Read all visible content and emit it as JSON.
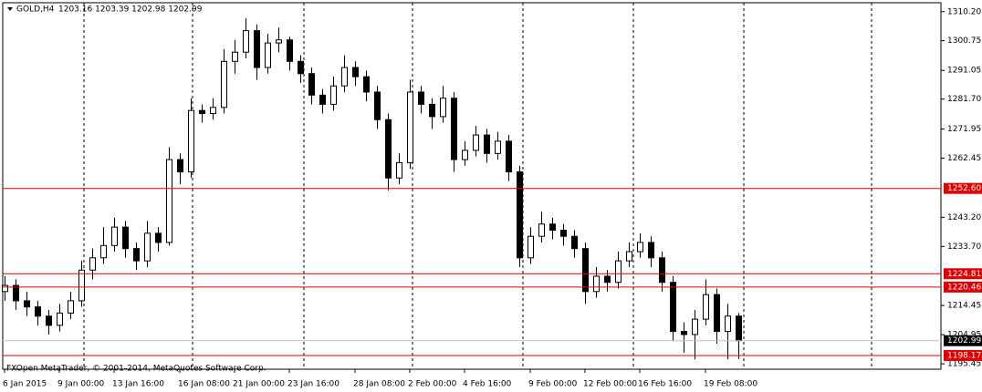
{
  "chart_data": {
    "type": "candlestick",
    "symbol": "GOLD,H4",
    "quote": "1203.16 1203.39 1202.98 1202.99",
    "footer": "FXOpen MetaTrader, © 2001-2014, MetaQuotes Software Corp.",
    "categories": [
      "6 Jan 2015",
      null,
      null,
      null,
      null,
      "9 Jan 00:00",
      null,
      null,
      null,
      null,
      "13 Jan 16:00",
      null,
      null,
      null,
      null,
      null,
      "16 Jan 08:00",
      null,
      null,
      null,
      null,
      "21 Jan 00:00",
      null,
      null,
      null,
      null,
      "23 Jan 16:00",
      null,
      null,
      null,
      null,
      null,
      "28 Jan 08:00",
      null,
      null,
      null,
      null,
      "2 Feb 00:00",
      null,
      null,
      null,
      null,
      "4 Feb 16:00",
      null,
      null,
      null,
      null,
      null,
      "9 Feb 00:00",
      null,
      null,
      null,
      null,
      "12 Feb 00:00",
      null,
      null,
      null,
      null,
      "16 Feb 16:00",
      null,
      null,
      null,
      null,
      null,
      "19 Feb 08:00",
      null,
      null,
      null
    ],
    "open": [
      1219,
      1221,
      1216,
      1214,
      1211,
      1208,
      1212,
      1216,
      1226,
      1230,
      1234,
      1240,
      1233,
      1229,
      1238,
      1235,
      1262,
      1258,
      1278,
      1277,
      1279,
      1294,
      1297,
      1304,
      1292,
      1300,
      1301,
      1294,
      1290,
      1283,
      1280,
      1286,
      1292,
      1289,
      1284,
      1275,
      1256,
      1261,
      1284,
      1280,
      1276,
      1282,
      1262,
      1265,
      1270,
      1264,
      1268,
      1258,
      1230,
      1237,
      1241,
      1239,
      1237,
      1233,
      1219,
      1224,
      1222,
      1229,
      1232,
      1235,
      1230,
      1222,
      1206,
      1205,
      1210,
      1218,
      1206,
      1211
    ],
    "high": [
      1224,
      1223,
      1219,
      1216,
      1213,
      1215,
      1219,
      1229,
      1233,
      1240,
      1243,
      1242,
      1235,
      1242,
      1240,
      1266,
      1264,
      1282,
      1280,
      1282,
      1298,
      1301,
      1308,
      1306,
      1303,
      1305,
      1302,
      1296,
      1292,
      1285,
      1289,
      1296,
      1294,
      1291,
      1286,
      1277,
      1264,
      1288,
      1286,
      1282,
      1286,
      1284,
      1268,
      1273,
      1272,
      1271,
      1270,
      1260,
      1240,
      1245,
      1243,
      1241,
      1239,
      1235,
      1227,
      1226,
      1232,
      1235,
      1238,
      1237,
      1232,
      1224,
      1209,
      1213,
      1223,
      1220,
      1215,
      1212
    ],
    "low": [
      1216,
      1213,
      1211,
      1208,
      1205,
      1206,
      1210,
      1214,
      1223,
      1228,
      1232,
      1230,
      1226,
      1227,
      1232,
      1234,
      1254,
      1256,
      1274,
      1275,
      1277,
      1290,
      1295,
      1288,
      1290,
      1297,
      1291,
      1287,
      1280,
      1277,
      1278,
      1284,
      1286,
      1281,
      1272,
      1252,
      1254,
      1259,
      1277,
      1272,
      1274,
      1258,
      1260,
      1263,
      1261,
      1262,
      1255,
      1227,
      1228,
      1235,
      1236,
      1234,
      1230,
      1215,
      1217,
      1219,
      1220,
      1227,
      1230,
      1227,
      1219,
      1203,
      1199,
      1197,
      1208,
      1202,
      1197,
      1197
    ],
    "close": [
      1221,
      1216,
      1214,
      1211,
      1208,
      1212,
      1216,
      1226,
      1230,
      1234,
      1240,
      1233,
      1229,
      1238,
      1235,
      1262,
      1258,
      1278,
      1277,
      1279,
      1294,
      1297,
      1304,
      1292,
      1300,
      1301,
      1294,
      1290,
      1283,
      1280,
      1286,
      1292,
      1289,
      1284,
      1275,
      1256,
      1261,
      1284,
      1280,
      1276,
      1282,
      1262,
      1265,
      1270,
      1264,
      1268,
      1258,
      1230,
      1237,
      1241,
      1239,
      1237,
      1233,
      1219,
      1224,
      1222,
      1229,
      1232,
      1235,
      1230,
      1222,
      1206,
      1205,
      1210,
      1218,
      1206,
      1211,
      1202.99
    ],
    "up_color": "#ffffff",
    "down_color": "#000000",
    "ylim": [
      1193.7,
      1313.1
    ],
    "yticks": [
      {
        "value": 1310.2,
        "label": "1310.20"
      },
      1300.75,
      1291.05,
      {
        "value": 1281.7,
        "label": "1281.70"
      },
      1271.95,
      1262.45,
      {
        "value": 1243.2,
        "label": "1243.20"
      },
      {
        "value": 1233.7,
        "label": "1233.70"
      },
      1214.45,
      1204.95,
      1195.45
    ],
    "levels": [
      {
        "value": 1252.6,
        "label": "1252.60"
      },
      1224.81,
      1220.46,
      1198.17
    ],
    "level_color": "#e00000",
    "current_price": 1202.99
  }
}
